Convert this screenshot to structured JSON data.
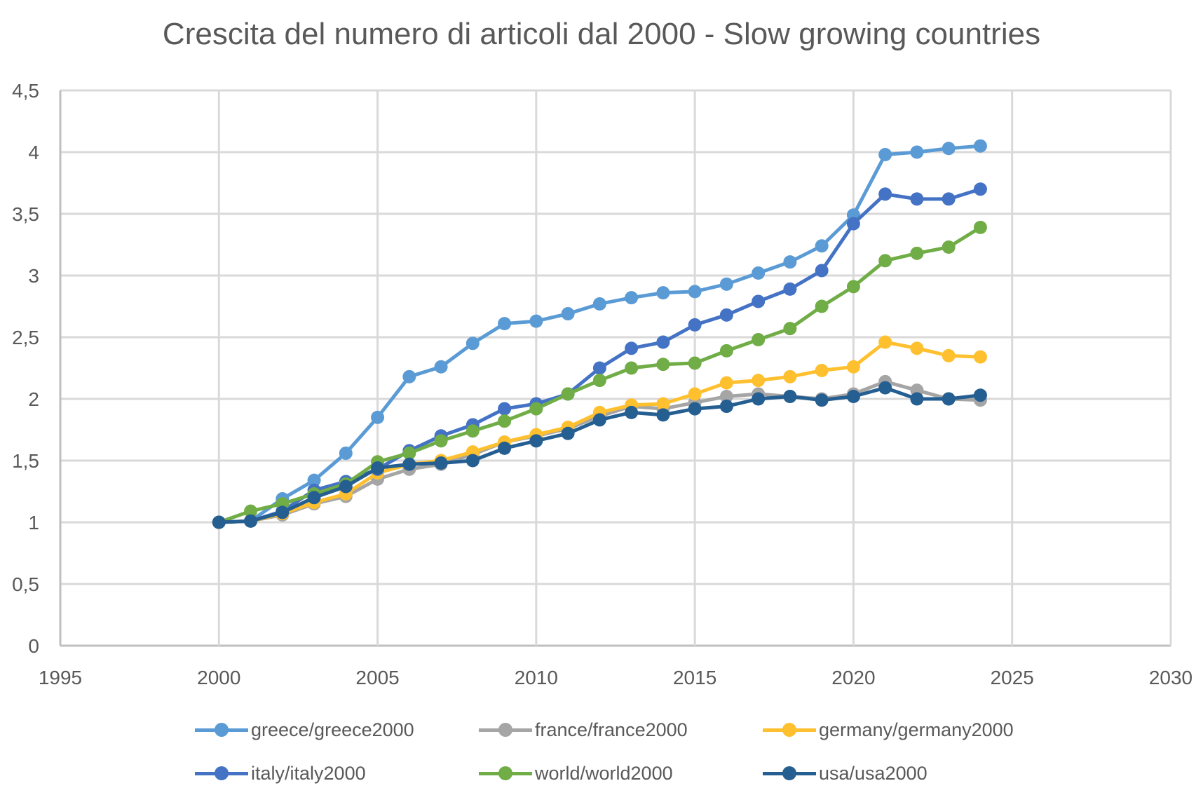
{
  "chart_data": {
    "type": "line",
    "title": "Crescita del numero di articoli dal 2000 - Slow growing countries",
    "xlabel": "",
    "ylabel": "",
    "xlim": [
      1995,
      2030
    ],
    "ylim": [
      0,
      4.5
    ],
    "x_ticks": [
      1995,
      2000,
      2005,
      2010,
      2015,
      2020,
      2025,
      2030
    ],
    "x_tick_labels": [
      "1995",
      "2000",
      "2005",
      "2010",
      "2015",
      "2020",
      "2025",
      "2030"
    ],
    "y_ticks": [
      0,
      0.5,
      1,
      1.5,
      2,
      2.5,
      3,
      3.5,
      4,
      4.5
    ],
    "y_tick_labels": [
      "0",
      "0,5",
      "1",
      "1,5",
      "2",
      "2,5",
      "3",
      "3,5",
      "4",
      "4,5"
    ],
    "grid": true,
    "legend_position": "bottom",
    "x": [
      2000,
      2001,
      2002,
      2003,
      2004,
      2005,
      2006,
      2007,
      2008,
      2009,
      2010,
      2011,
      2012,
      2013,
      2014,
      2015,
      2016,
      2017,
      2018,
      2019,
      2020,
      2021,
      2022,
      2023,
      2024
    ],
    "series": [
      {
        "name": "greece/greece2000",
        "color": "#5B9BD5",
        "values": [
          1.0,
          1.01,
          1.19,
          1.34,
          1.56,
          1.85,
          2.18,
          2.26,
          2.45,
          2.61,
          2.63,
          2.69,
          2.77,
          2.82,
          2.86,
          2.87,
          2.93,
          3.02,
          3.11,
          3.24,
          3.49,
          3.98,
          4.0,
          4.03,
          4.05
        ]
      },
      {
        "name": "france/france2000",
        "color": "#A5A5A5",
        "values": [
          1.0,
          1.01,
          1.06,
          1.15,
          1.21,
          1.35,
          1.43,
          1.47,
          1.55,
          1.65,
          1.7,
          1.76,
          1.86,
          1.94,
          1.92,
          1.97,
          2.02,
          2.04,
          2.02,
          2.0,
          2.04,
          2.14,
          2.07,
          2.0,
          1.99
        ]
      },
      {
        "name": "germany/germany2000",
        "color": "#FFC02F",
        "values": [
          1.0,
          1.01,
          1.07,
          1.16,
          1.23,
          1.4,
          1.47,
          1.5,
          1.57,
          1.65,
          1.71,
          1.77,
          1.89,
          1.95,
          1.96,
          2.04,
          2.13,
          2.15,
          2.18,
          2.23,
          2.26,
          2.46,
          2.41,
          2.35,
          2.34
        ]
      },
      {
        "name": "italy/italy2000",
        "color": "#4472C4",
        "values": [
          1.0,
          1.01,
          1.09,
          1.26,
          1.33,
          1.43,
          1.58,
          1.7,
          1.79,
          1.92,
          1.96,
          2.04,
          2.25,
          2.41,
          2.46,
          2.6,
          2.68,
          2.79,
          2.89,
          3.04,
          3.42,
          3.66,
          3.62,
          3.62,
          3.7
        ]
      },
      {
        "name": "world/world2000",
        "color": "#70AD47",
        "values": [
          1.0,
          1.09,
          1.15,
          1.23,
          1.31,
          1.49,
          1.56,
          1.66,
          1.74,
          1.82,
          1.92,
          2.04,
          2.15,
          2.25,
          2.28,
          2.29,
          2.39,
          2.48,
          2.57,
          2.75,
          2.91,
          3.12,
          3.18,
          3.23,
          3.39
        ]
      },
      {
        "name": "usa/usa2000",
        "color": "#255E91",
        "values": [
          1.0,
          1.01,
          1.08,
          1.2,
          1.29,
          1.44,
          1.47,
          1.48,
          1.5,
          1.6,
          1.66,
          1.72,
          1.83,
          1.89,
          1.87,
          1.92,
          1.94,
          2.0,
          2.02,
          1.99,
          2.02,
          2.09,
          2.0,
          2.0,
          2.03
        ]
      }
    ]
  },
  "colors": {
    "grid": "#D9D9D9",
    "axis": "#BFBFBF",
    "text": "#595959"
  }
}
